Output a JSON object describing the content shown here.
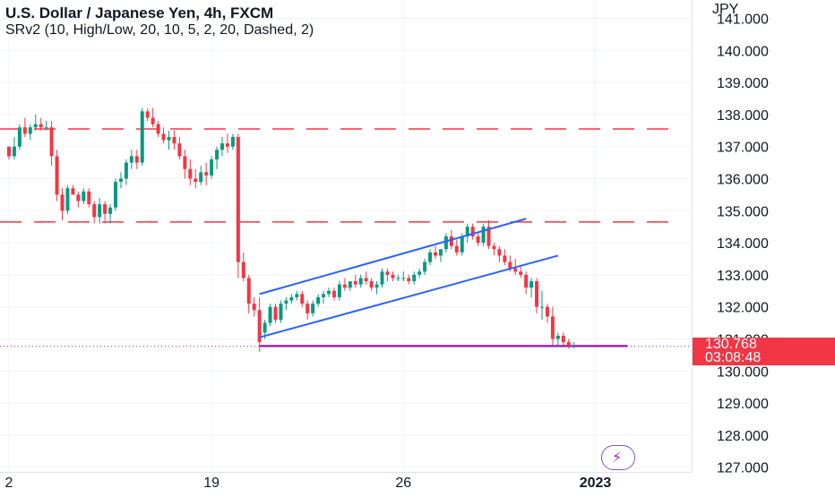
{
  "header": {
    "title": "U.S. Dollar / Japanese Yen, 4h, FXCM",
    "indicator": "SRv2 (10, High/Low, 20, 10, 5, 2, 20, Dashed, 2)",
    "currency": "JPY"
  },
  "price_badge": {
    "price": "130.768",
    "countdown": "03:08:48"
  },
  "colors": {
    "up": "#089981",
    "down": "#f23645",
    "sr_line": "#f23645",
    "channel": "#2962ff",
    "support": "#9c27b0",
    "grid": "#f0f3fa",
    "axis_text": "#131722"
  },
  "icons": {
    "bolt": "lightning-icon"
  },
  "chart_data": {
    "type": "candlestick",
    "title": "U.S. Dollar / Japanese Yen, 4h, FXCM",
    "y_axis": {
      "range": [
        127,
        141
      ],
      "ticks": [
        127,
        128,
        129,
        130,
        131,
        132,
        133,
        134,
        135,
        136,
        137,
        138,
        139,
        140,
        141
      ],
      "tick_labels": [
        "127.000",
        "128.000",
        "129.000",
        "130.000",
        "131.000",
        "132.000",
        "133.000",
        "134.000",
        "135.000",
        "136.000",
        "137.000",
        "138.000",
        "139.000",
        "140.000",
        "141.000"
      ]
    },
    "x_axis": {
      "tick_labels": [
        {
          "label": "2",
          "bar": 0
        },
        {
          "label": "19",
          "bar": 38
        },
        {
          "label": "26",
          "bar": 74
        },
        {
          "label": "2023",
          "bar": 110
        }
      ]
    },
    "grid": true,
    "last_price": 130.768,
    "support_resistance": [
      {
        "kind": "resistance",
        "value": 137.55,
        "style": "dashed"
      },
      {
        "kind": "resistance",
        "value": 134.65,
        "style": "dashed"
      },
      {
        "kind": "support",
        "value": 130.78,
        "style": "solid",
        "from_bar": 47,
        "to_bar": 116
      }
    ],
    "channel": {
      "upper": [
        {
          "bar": 47,
          "value": 132.4
        },
        {
          "bar": 97,
          "value": 134.75
        }
      ],
      "lower": [
        {
          "bar": 47,
          "value": 131.05
        },
        {
          "bar": 103,
          "value": 133.6
        }
      ]
    },
    "ohlc": [
      [
        137.0,
        137.0,
        136.6,
        136.7
      ],
      [
        136.7,
        137.3,
        136.6,
        137.0
      ],
      [
        137.0,
        137.7,
        136.9,
        137.6
      ],
      [
        137.6,
        137.9,
        137.3,
        137.4
      ],
      [
        137.4,
        137.7,
        137.2,
        137.6
      ],
      [
        137.6,
        138.0,
        137.5,
        137.7
      ],
      [
        137.7,
        137.9,
        137.5,
        137.6
      ],
      [
        137.6,
        137.8,
        137.5,
        137.6
      ],
      [
        137.6,
        137.8,
        136.4,
        136.7
      ],
      [
        136.7,
        136.9,
        135.3,
        135.5
      ],
      [
        135.5,
        135.7,
        134.7,
        135.0
      ],
      [
        135.0,
        135.8,
        134.9,
        135.7
      ],
      [
        135.7,
        135.8,
        135.5,
        135.5
      ],
      [
        135.5,
        135.6,
        135.1,
        135.3
      ],
      [
        135.3,
        135.7,
        135.2,
        135.6
      ],
      [
        135.6,
        135.7,
        135.1,
        135.2
      ],
      [
        135.2,
        135.3,
        134.6,
        134.8
      ],
      [
        134.8,
        135.4,
        134.6,
        135.2
      ],
      [
        135.2,
        135.3,
        134.6,
        134.9
      ],
      [
        134.9,
        135.2,
        134.6,
        135.1
      ],
      [
        135.1,
        136.0,
        135.0,
        135.9
      ],
      [
        135.9,
        136.2,
        135.7,
        136.0
      ],
      [
        136.0,
        136.6,
        135.8,
        136.5
      ],
      [
        136.5,
        136.9,
        136.3,
        136.7
      ],
      [
        136.7,
        136.9,
        136.3,
        136.5
      ],
      [
        136.5,
        138.2,
        136.4,
        138.1
      ],
      [
        138.1,
        138.2,
        137.8,
        137.9
      ],
      [
        137.9,
        138.2,
        137.6,
        137.7
      ],
      [
        137.7,
        137.8,
        137.3,
        137.4
      ],
      [
        137.4,
        137.6,
        137.1,
        137.2
      ],
      [
        137.2,
        137.5,
        136.9,
        137.3
      ],
      [
        137.3,
        137.5,
        136.9,
        137.1
      ],
      [
        137.1,
        137.3,
        136.6,
        136.7
      ],
      [
        136.7,
        136.9,
        136.0,
        136.3
      ],
      [
        136.3,
        136.6,
        135.8,
        136.0
      ],
      [
        136.0,
        136.3,
        135.7,
        135.9
      ],
      [
        135.9,
        136.4,
        135.8,
        136.2
      ],
      [
        136.2,
        136.5,
        135.8,
        136.1
      ],
      [
        136.1,
        136.7,
        136.0,
        136.6
      ],
      [
        136.6,
        137.0,
        136.3,
        136.9
      ],
      [
        136.9,
        137.3,
        136.7,
        137.1
      ],
      [
        137.1,
        137.4,
        136.8,
        137.0
      ],
      [
        137.0,
        137.4,
        136.9,
        137.3
      ],
      [
        137.3,
        137.4,
        132.9,
        133.4
      ],
      [
        133.4,
        133.7,
        132.8,
        132.9
      ],
      [
        132.9,
        133.0,
        131.8,
        132.1
      ],
      [
        132.1,
        132.3,
        131.7,
        131.9
      ],
      [
        131.9,
        132.3,
        130.6,
        130.9
      ],
      [
        131.2,
        131.6,
        131.0,
        131.5
      ],
      [
        131.5,
        132.1,
        131.4,
        132.0
      ],
      [
        132.0,
        132.1,
        131.5,
        131.6
      ],
      [
        131.6,
        132.2,
        131.5,
        132.1
      ],
      [
        132.1,
        132.3,
        131.9,
        132.2
      ],
      [
        132.2,
        132.4,
        132.1,
        132.3
      ],
      [
        132.3,
        132.5,
        132.2,
        132.4
      ],
      [
        132.4,
        132.5,
        132.0,
        132.1
      ],
      [
        132.1,
        132.2,
        131.6,
        131.8
      ],
      [
        131.8,
        132.2,
        131.7,
        132.1
      ],
      [
        132.1,
        132.4,
        132.0,
        132.3
      ],
      [
        132.3,
        132.5,
        132.1,
        132.4
      ],
      [
        132.4,
        132.6,
        132.3,
        132.5
      ],
      [
        132.5,
        132.6,
        132.2,
        132.3
      ],
      [
        132.3,
        132.8,
        132.2,
        132.7
      ],
      [
        132.7,
        132.9,
        132.5,
        132.6
      ],
      [
        132.6,
        132.8,
        132.5,
        132.8
      ],
      [
        132.8,
        133.0,
        132.6,
        132.7
      ],
      [
        132.7,
        133.0,
        132.6,
        132.9
      ],
      [
        132.9,
        133.1,
        132.7,
        132.8
      ],
      [
        132.8,
        132.9,
        132.5,
        132.6
      ],
      [
        132.6,
        132.8,
        132.4,
        132.7
      ],
      [
        132.7,
        133.2,
        132.6,
        133.1
      ],
      [
        133.1,
        133.2,
        132.8,
        133.0
      ],
      [
        133.0,
        133.1,
        132.8,
        132.9
      ],
      [
        132.9,
        133.0,
        132.8,
        132.9
      ],
      [
        132.9,
        133.1,
        132.8,
        132.9
      ],
      [
        132.9,
        133.0,
        132.7,
        132.8
      ],
      [
        132.8,
        133.1,
        132.7,
        133.0
      ],
      [
        133.0,
        133.2,
        132.9,
        133.1
      ],
      [
        133.1,
        133.5,
        133.0,
        133.4
      ],
      [
        133.4,
        133.8,
        133.3,
        133.7
      ],
      [
        133.7,
        133.9,
        133.5,
        133.6
      ],
      [
        133.6,
        133.8,
        133.4,
        133.8
      ],
      [
        133.8,
        134.3,
        133.7,
        134.2
      ],
      [
        134.2,
        134.4,
        133.8,
        133.9
      ],
      [
        133.9,
        134.1,
        133.6,
        133.7
      ],
      [
        133.7,
        134.3,
        133.6,
        134.2
      ],
      [
        134.2,
        134.6,
        134.0,
        134.5
      ],
      [
        134.5,
        134.6,
        134.1,
        134.2
      ],
      [
        134.2,
        134.3,
        133.9,
        134.0
      ],
      [
        134.0,
        134.6,
        133.9,
        134.5
      ],
      [
        134.5,
        134.7,
        133.8,
        133.9
      ],
      [
        133.9,
        134.0,
        133.6,
        133.8
      ],
      [
        133.8,
        133.9,
        133.4,
        133.6
      ],
      [
        133.6,
        133.8,
        133.3,
        133.4
      ],
      [
        133.4,
        133.6,
        133.1,
        133.2
      ],
      [
        133.2,
        133.5,
        133.0,
        133.1
      ],
      [
        133.1,
        133.3,
        132.9,
        133.0
      ],
      [
        133.0,
        133.1,
        132.4,
        132.6
      ],
      [
        132.6,
        132.9,
        132.3,
        132.8
      ],
      [
        132.8,
        132.9,
        131.8,
        132.0
      ],
      [
        132.0,
        132.5,
        131.6,
        132.0
      ],
      [
        132.0,
        132.1,
        131.5,
        131.7
      ],
      [
        131.7,
        132.0,
        130.8,
        131.0
      ],
      [
        131.0,
        131.2,
        130.8,
        131.1
      ],
      [
        131.1,
        131.2,
        130.8,
        130.9
      ],
      [
        130.9,
        131.0,
        130.7,
        130.8
      ],
      [
        130.8,
        130.9,
        130.7,
        130.8
      ]
    ]
  }
}
